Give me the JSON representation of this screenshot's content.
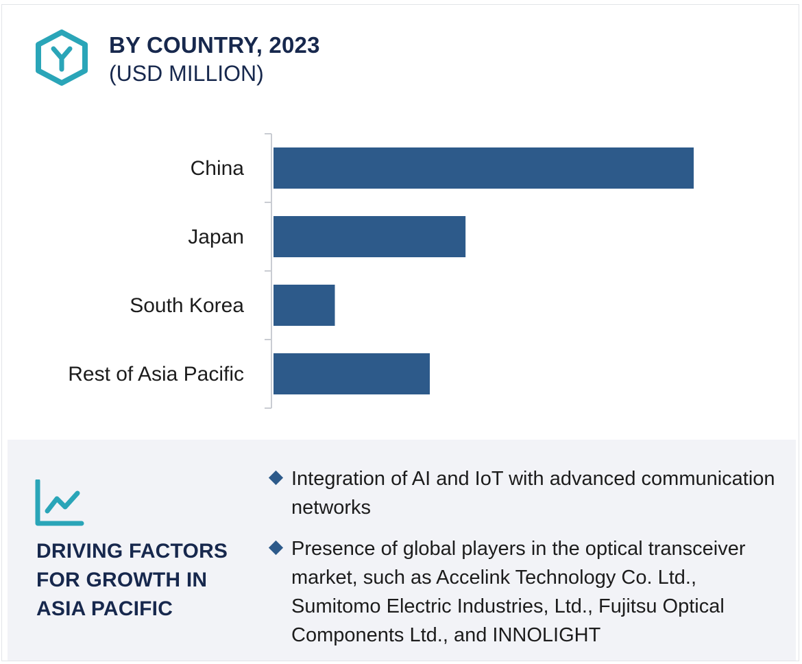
{
  "header": {
    "title": "BY COUNTRY, 2023",
    "subtitle": "(USD MILLION)",
    "logo_icon": "hexagon-y-logo-icon"
  },
  "colors": {
    "bar": "#2d5a8a",
    "accent": "#2aa5b8",
    "heading": "#17284d",
    "panel_bg": "#f2f3f7"
  },
  "chart_data": {
    "type": "bar",
    "orientation": "horizontal",
    "title": "BY COUNTRY, 2023",
    "subtitle": "(USD MILLION)",
    "categories": [
      "China",
      "Japan",
      "South Korea",
      "Rest of Asia Pacific"
    ],
    "values": [
      100,
      45.7,
      14.6,
      37.2
    ],
    "xlim": [
      0,
      100
    ],
    "grid": false,
    "legend": "none",
    "value_axis_shown": false
  },
  "factors": {
    "icon": "trend-line-icon",
    "heading_lines": [
      "DRIVING FACTORS",
      "FOR GROWTH IN",
      "ASIA PACIFIC"
    ],
    "bullets": [
      "Integration of AI and IoT with advanced communication networks",
      "Presence of global players in the optical transceiver market, such as Accelink Technology Co. Ltd., Sumitomo Electric Industries, Ltd., Fujitsu Optical Components Ltd., and INNOLIGHT"
    ]
  }
}
